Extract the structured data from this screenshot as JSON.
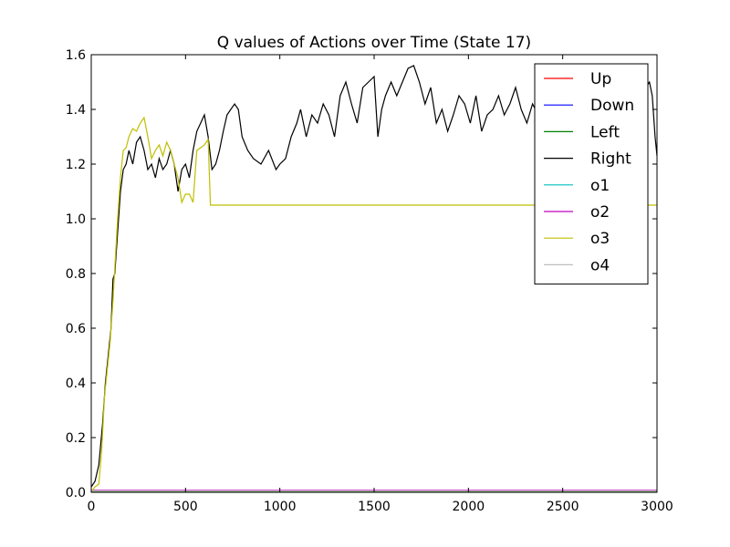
{
  "chart_data": {
    "type": "line",
    "title": "Q values of Actions over Time (State 17)",
    "xlabel": "",
    "ylabel": "",
    "xlim": [
      0,
      3000
    ],
    "ylim": [
      0.0,
      1.6
    ],
    "x_ticks": [
      0,
      500,
      1000,
      1500,
      2000,
      2500,
      3000
    ],
    "x_tick_labels": [
      "0",
      "500",
      "1000",
      "1500",
      "2000",
      "2500",
      "3000"
    ],
    "y_ticks": [
      0.0,
      0.2,
      0.4,
      0.6,
      0.8,
      1.0,
      1.2,
      1.4,
      1.6
    ],
    "y_tick_labels": [
      "0.0",
      "0.2",
      "0.4",
      "0.6",
      "0.8",
      "1.0",
      "1.2",
      "1.4",
      "1.6"
    ],
    "grid": false,
    "legend_position": "top-right",
    "series": [
      {
        "name": "Up",
        "color": "#ff0000",
        "x": [
          0,
          3000
        ],
        "y": [
          0.005,
          0.005
        ]
      },
      {
        "name": "Down",
        "color": "#0000ff",
        "x": [
          0,
          3000
        ],
        "y": [
          0.006,
          0.006
        ]
      },
      {
        "name": "Left",
        "color": "#008000",
        "x": [
          0,
          3000
        ],
        "y": [
          0.004,
          0.004
        ]
      },
      {
        "name": "Right",
        "color": "#000000",
        "x": [
          0,
          20,
          40,
          60,
          75,
          90,
          105,
          115,
          125,
          140,
          155,
          170,
          185,
          200,
          220,
          240,
          260,
          280,
          300,
          320,
          340,
          360,
          380,
          400,
          420,
          440,
          460,
          480,
          500,
          520,
          540,
          560,
          580,
          600,
          620,
          640,
          660,
          680,
          700,
          720,
          740,
          760,
          780,
          800,
          830,
          860,
          900,
          940,
          980,
          1000,
          1030,
          1060,
          1090,
          1110,
          1140,
          1170,
          1200,
          1230,
          1260,
          1290,
          1320,
          1350,
          1380,
          1410,
          1440,
          1470,
          1500,
          1520,
          1540,
          1560,
          1590,
          1620,
          1650,
          1680,
          1710,
          1740,
          1770,
          1800,
          1830,
          1860,
          1890,
          1920,
          1950,
          1980,
          2010,
          2040,
          2070,
          2100,
          2130,
          2160,
          2190,
          2220,
          2250,
          2280,
          2310,
          2340,
          2370,
          2400,
          2430,
          2460,
          2490,
          2520,
          2550,
          2580,
          2610,
          2640,
          2670,
          2700,
          2730,
          2760,
          2790,
          2820,
          2850,
          2880,
          2910,
          2940,
          2960,
          2975,
          2990,
          3000
        ],
        "y": [
          0.02,
          0.04,
          0.1,
          0.25,
          0.4,
          0.5,
          0.6,
          0.78,
          0.8,
          0.95,
          1.1,
          1.18,
          1.2,
          1.25,
          1.2,
          1.28,
          1.3,
          1.25,
          1.18,
          1.2,
          1.15,
          1.22,
          1.18,
          1.2,
          1.25,
          1.2,
          1.1,
          1.18,
          1.2,
          1.15,
          1.25,
          1.32,
          1.35,
          1.38,
          1.3,
          1.18,
          1.2,
          1.25,
          1.32,
          1.38,
          1.4,
          1.42,
          1.4,
          1.3,
          1.25,
          1.22,
          1.2,
          1.25,
          1.18,
          1.2,
          1.22,
          1.3,
          1.35,
          1.4,
          1.3,
          1.38,
          1.35,
          1.42,
          1.38,
          1.3,
          1.45,
          1.5,
          1.42,
          1.35,
          1.48,
          1.5,
          1.52,
          1.3,
          1.4,
          1.45,
          1.5,
          1.45,
          1.5,
          1.55,
          1.56,
          1.5,
          1.42,
          1.48,
          1.35,
          1.4,
          1.32,
          1.38,
          1.45,
          1.42,
          1.35,
          1.45,
          1.32,
          1.38,
          1.4,
          1.45,
          1.38,
          1.42,
          1.48,
          1.4,
          1.35,
          1.42,
          1.38,
          1.45,
          1.4,
          1.35,
          1.42,
          1.38,
          1.4,
          1.45,
          1.35,
          1.4,
          1.42,
          1.38,
          1.45,
          1.4,
          1.38,
          1.42,
          1.4,
          1.35,
          1.45,
          1.48,
          1.5,
          1.45,
          1.3,
          1.23
        ]
      },
      {
        "name": "o1",
        "color": "#00bfbf",
        "x": [
          0,
          3000
        ],
        "y": [
          0.006,
          0.006
        ]
      },
      {
        "name": "o2",
        "color": "#bf00bf",
        "x": [
          0,
          3000
        ],
        "y": [
          0.007,
          0.007
        ]
      },
      {
        "name": "o3",
        "color": "#bfbf00",
        "x": [
          0,
          20,
          40,
          55,
          70,
          85,
          100,
          115,
          125,
          140,
          155,
          170,
          185,
          200,
          220,
          240,
          260,
          280,
          300,
          320,
          340,
          360,
          380,
          400,
          420,
          440,
          460,
          480,
          500,
          520,
          540,
          560,
          580,
          600,
          620,
          632,
          640,
          3000
        ],
        "y": [
          0.0,
          0.02,
          0.03,
          0.15,
          0.35,
          0.45,
          0.55,
          0.7,
          0.82,
          1.0,
          1.15,
          1.25,
          1.26,
          1.3,
          1.33,
          1.32,
          1.35,
          1.37,
          1.3,
          1.22,
          1.25,
          1.27,
          1.23,
          1.28,
          1.25,
          1.2,
          1.15,
          1.06,
          1.09,
          1.09,
          1.06,
          1.25,
          1.26,
          1.27,
          1.29,
          1.05,
          1.05,
          1.05
        ]
      },
      {
        "name": "o4",
        "color": "#bfbfbf",
        "x": [
          0,
          3000
        ],
        "y": [
          0.005,
          0.005
        ]
      }
    ]
  }
}
